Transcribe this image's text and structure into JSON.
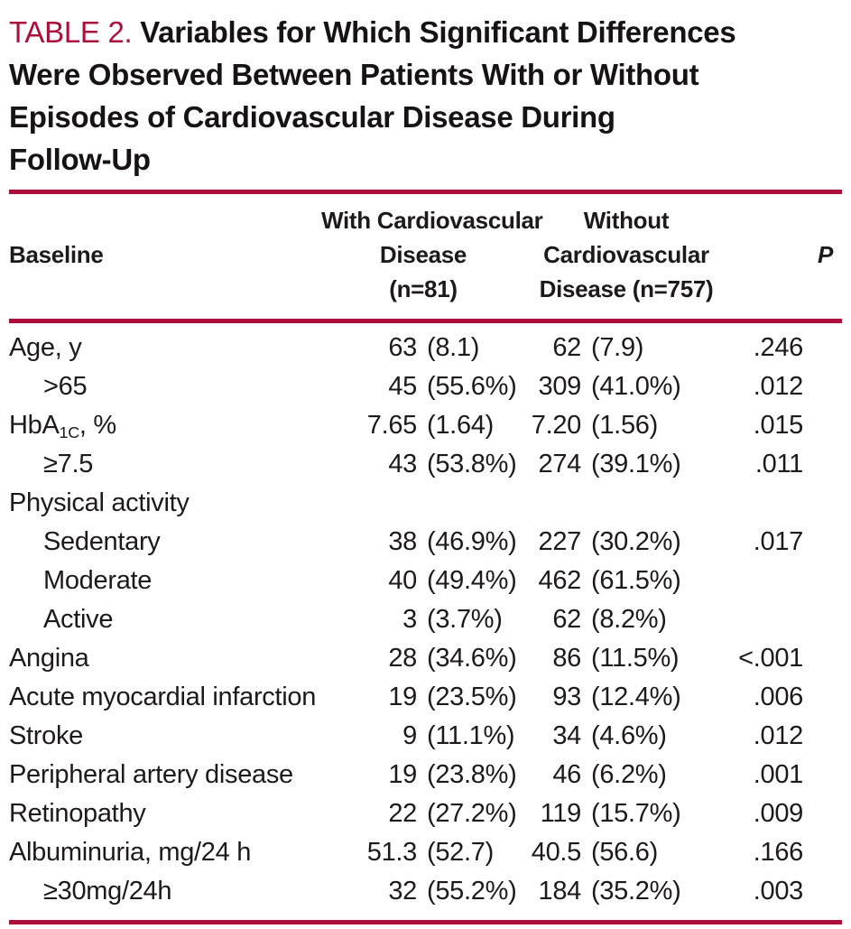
{
  "colors": {
    "accent_red": "#ab0f3b",
    "text": "#1d1a1b"
  },
  "title": {
    "label": "TABLE 2.",
    "lines": [
      "Variables for Which Significant Differences",
      "Were Observed Between Patients With or Without",
      "Episodes of Cardiovascular Disease During",
      "Follow-Up"
    ]
  },
  "table": {
    "header": {
      "col1": "Baseline",
      "col2_lines": [
        "With Cardiovascular",
        "Disease",
        "(n=81)"
      ],
      "col3_lines": [
        "Without",
        "Cardiovascular",
        "Disease (n=757)"
      ],
      "col4": "P"
    },
    "rows": [
      {
        "label": "Age, y",
        "indent": false,
        "v1": "63",
        "p1": "(8.1)",
        "v2": "62",
        "p2": "(7.9)",
        "p": ".246"
      },
      {
        "label": ">65",
        "indent": true,
        "v1": "45",
        "p1": "(55.6%)",
        "v2": "309",
        "p2": "(41.0%)",
        "p": ".012"
      },
      {
        "label": "HbA",
        "sub": "1C",
        "after": ", %",
        "indent": false,
        "v1": "7.65",
        "p1": "(1.64)",
        "v2": "7.20",
        "p2": "(1.56)",
        "p": ".015"
      },
      {
        "label": "≥7.5",
        "indent": true,
        "v1": "43",
        "p1": "(53.8%)",
        "v2": "274",
        "p2": "(39.1%)",
        "p": ".011"
      },
      {
        "label": "Physical activity",
        "indent": false,
        "v1": "",
        "p1": "",
        "v2": "",
        "p2": "",
        "p": ""
      },
      {
        "label": "Sedentary",
        "indent": true,
        "v1": "38",
        "p1": "(46.9%)",
        "v2": "227",
        "p2": "(30.2%)",
        "p": ".017"
      },
      {
        "label": "Moderate",
        "indent": true,
        "v1": "40",
        "p1": "(49.4%)",
        "v2": "462",
        "p2": "(61.5%)",
        "p": ""
      },
      {
        "label": "Active",
        "indent": true,
        "v1": "3",
        "p1": "(3.7%)",
        "v2": "62",
        "p2": "(8.2%)",
        "p": ""
      },
      {
        "label": "Angina",
        "indent": false,
        "v1": "28",
        "p1": "(34.6%)",
        "v2": "86",
        "p2": "(11.5%)",
        "p": "<.001"
      },
      {
        "label": "Acute myocardial infarction",
        "indent": false,
        "v1": "19",
        "p1": "(23.5%)",
        "v2": "93",
        "p2": "(12.4%)",
        "p": ".006"
      },
      {
        "label": "Stroke",
        "indent": false,
        "v1": "9",
        "p1": "(11.1%)",
        "v2": "34",
        "p2": "(4.6%)",
        "p": ".012"
      },
      {
        "label": "Peripheral artery disease",
        "indent": false,
        "v1": "19",
        "p1": "(23.8%)",
        "v2": "46",
        "p2": "(6.2%)",
        "p": ".001"
      },
      {
        "label": "Retinopathy",
        "indent": false,
        "v1": "22",
        "p1": "(27.2%)",
        "v2": "119",
        "p2": "(15.7%)",
        "p": ".009"
      },
      {
        "label": "Albuminuria, mg/24 h",
        "indent": false,
        "v1": "51.3",
        "p1": "(52.7)",
        "v2": "40.5",
        "p2": "(56.6)",
        "p": ".166"
      },
      {
        "label": "≥30mg/24h",
        "indent": true,
        "v1": "32",
        "p1": "(55.2%)",
        "v2": "184",
        "p2": "(35.2%)",
        "p": ".003"
      }
    ]
  }
}
